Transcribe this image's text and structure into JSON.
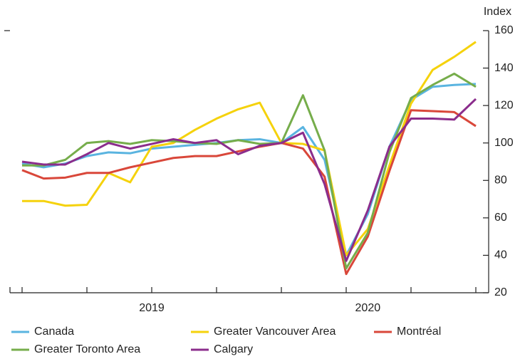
{
  "chart_data": {
    "type": "line",
    "y_axis_label": "Index",
    "axis_side": "right",
    "categories": [
      null,
      null,
      null,
      null,
      null,
      null,
      "2019",
      null,
      null,
      null,
      null,
      null,
      null,
      null,
      null,
      null,
      "2020",
      null,
      null,
      null,
      null,
      null
    ],
    "series": [
      {
        "name": "Canada",
        "color": "#5ab4e0",
        "values": [
          89,
          87,
          89,
          93,
          95,
          94.5,
          97,
          98,
          99,
          100,
          101.5,
          102,
          100,
          108.5,
          91,
          40,
          62,
          98,
          123,
          130,
          131,
          131.5
        ]
      },
      {
        "name": "Greater Vancouver Area",
        "color": "#f5d20c",
        "values": [
          69,
          69,
          66.5,
          67,
          84,
          79,
          98,
          100,
          107,
          113,
          118,
          121.5,
          100,
          99.5,
          96,
          40,
          54,
          88,
          121,
          139,
          146,
          154
        ]
      },
      {
        "name": "Montréal",
        "color": "#d9473a",
        "values": [
          85.5,
          81,
          81.5,
          84,
          84,
          87,
          89.5,
          92,
          93,
          93,
          95.5,
          98,
          100,
          97,
          82,
          30,
          50,
          85,
          117.5,
          117,
          116.5,
          109
        ]
      },
      {
        "name": "Greater Toronto Area",
        "color": "#76ad4b",
        "values": [
          88,
          88,
          91,
          100,
          101,
          99.5,
          101.5,
          101,
          100,
          99.5,
          101.5,
          99.5,
          100,
          125.5,
          96,
          33,
          52,
          95,
          124,
          131,
          137,
          130
        ]
      },
      {
        "name": "Calgary",
        "color": "#8b2d8c",
        "values": [
          90,
          88.5,
          88.5,
          94,
          100,
          97,
          99.5,
          102,
          100,
          101.5,
          94,
          98.5,
          100,
          105.5,
          78,
          37,
          64,
          98,
          113,
          113,
          112.5,
          123.5
        ]
      }
    ],
    "ylim": [
      20,
      160
    ],
    "yticks": [
      20,
      40,
      60,
      80,
      100,
      120,
      140,
      160
    ]
  }
}
